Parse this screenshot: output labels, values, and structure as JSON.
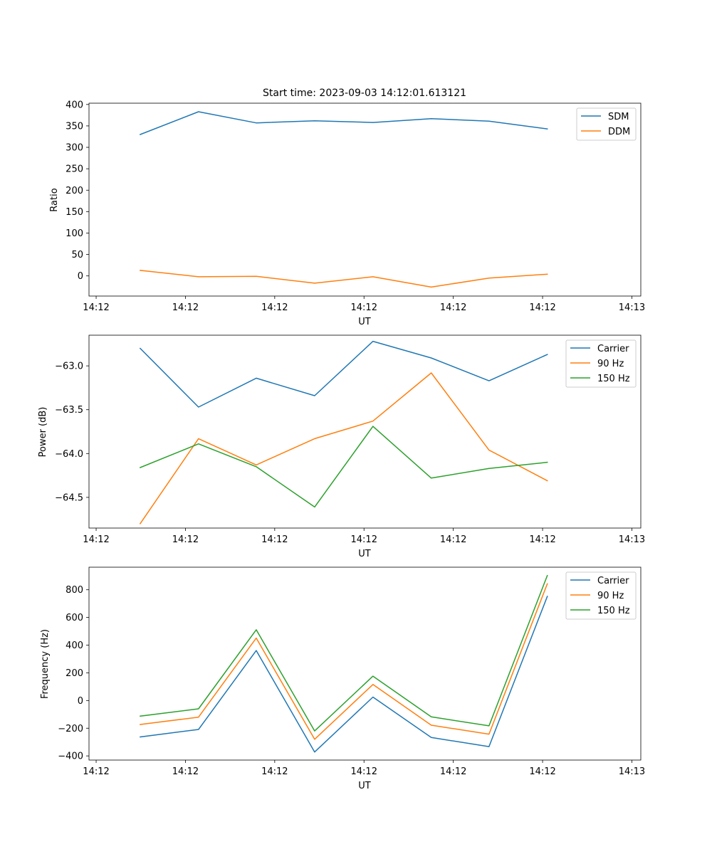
{
  "figure_title": "Start time: 2023-09-03 14:12:01.613121",
  "chart_data": [
    {
      "type": "line",
      "title": "Start time: 2023-09-03 14:12:01.613121",
      "xlabel": "UT",
      "ylabel": "Ratio",
      "xlim": [
        -0.12,
        9.15
      ],
      "ylim": [
        -47,
        403
      ],
      "x_ticks": [
        {
          "value": 0,
          "label": "14:12"
        },
        {
          "value": 1.5,
          "label": "14:12"
        },
        {
          "value": 3,
          "label": "14:12"
        },
        {
          "value": 4.5,
          "label": "14:12"
        },
        {
          "value": 6,
          "label": "14:12"
        },
        {
          "value": 7.5,
          "label": "14:12"
        },
        {
          "value": 9,
          "label": "14:13"
        }
      ],
      "y_ticks": [
        {
          "value": 0,
          "label": "0"
        },
        {
          "value": 50,
          "label": "50"
        },
        {
          "value": 100,
          "label": "100"
        },
        {
          "value": 150,
          "label": "150"
        },
        {
          "value": 200,
          "label": "200"
        },
        {
          "value": 250,
          "label": "250"
        },
        {
          "value": 300,
          "label": "300"
        },
        {
          "value": 350,
          "label": "350"
        },
        {
          "value": 400,
          "label": "400"
        }
      ],
      "x": [
        0.74,
        1.72,
        2.69,
        3.67,
        4.65,
        5.63,
        6.6,
        7.58
      ],
      "series": [
        {
          "name": "SDM",
          "color": "#1f77b4",
          "values": [
            330,
            383,
            357,
            362,
            358,
            367,
            361,
            343
          ]
        },
        {
          "name": "DDM",
          "color": "#ff7f0e",
          "values": [
            13,
            -2,
            -1,
            -17,
            -2,
            -26,
            -5,
            4
          ]
        }
      ],
      "legend_loc": "upper right"
    },
    {
      "type": "line",
      "title": "",
      "xlabel": "UT",
      "ylabel": "Power (dB)",
      "xlim": [
        -0.12,
        9.15
      ],
      "ylim": [
        -64.85,
        -62.65
      ],
      "x_ticks": [
        {
          "value": 0,
          "label": "14:12"
        },
        {
          "value": 1.5,
          "label": "14:12"
        },
        {
          "value": 3,
          "label": "14:12"
        },
        {
          "value": 4.5,
          "label": "14:12"
        },
        {
          "value": 6,
          "label": "14:12"
        },
        {
          "value": 7.5,
          "label": "14:12"
        },
        {
          "value": 9,
          "label": "14:13"
        }
      ],
      "y_ticks": [
        {
          "value": -64.5,
          "label": "−64.5"
        },
        {
          "value": -64.0,
          "label": "−64.0"
        },
        {
          "value": -63.5,
          "label": "−63.5"
        },
        {
          "value": -63.0,
          "label": "−63.0"
        }
      ],
      "x": [
        0.74,
        1.72,
        2.69,
        3.67,
        4.65,
        5.63,
        6.6,
        7.58
      ],
      "series": [
        {
          "name": "Carrier",
          "color": "#1f77b4",
          "values": [
            -62.8,
            -63.47,
            -63.14,
            -63.34,
            -62.72,
            -62.91,
            -63.17,
            -62.87
          ]
        },
        {
          "name": "90 Hz",
          "color": "#ff7f0e",
          "values": [
            -64.8,
            -63.83,
            -64.13,
            -63.83,
            -63.63,
            -63.08,
            -63.96,
            -64.31
          ]
        },
        {
          "name": "150 Hz",
          "color": "#2ca02c",
          "values": [
            -64.16,
            -63.89,
            -64.15,
            -64.61,
            -63.69,
            -64.28,
            -64.17,
            -64.1
          ]
        }
      ],
      "legend_loc": "upper right"
    },
    {
      "type": "line",
      "title": "",
      "xlabel": "UT",
      "ylabel": "Frequency (Hz)",
      "xlim": [
        -0.12,
        9.15
      ],
      "ylim": [
        -430,
        963
      ],
      "x_ticks": [
        {
          "value": 0,
          "label": "14:12"
        },
        {
          "value": 1.5,
          "label": "14:12"
        },
        {
          "value": 3,
          "label": "14:12"
        },
        {
          "value": 4.5,
          "label": "14:12"
        },
        {
          "value": 6,
          "label": "14:12"
        },
        {
          "value": 7.5,
          "label": "14:12"
        },
        {
          "value": 9,
          "label": "14:13"
        }
      ],
      "y_ticks": [
        {
          "value": -400,
          "label": "−400"
        },
        {
          "value": -200,
          "label": "−200"
        },
        {
          "value": 0,
          "label": "0"
        },
        {
          "value": 200,
          "label": "200"
        },
        {
          "value": 400,
          "label": "400"
        },
        {
          "value": 600,
          "label": "600"
        },
        {
          "value": 800,
          "label": "800"
        }
      ],
      "x": [
        0.74,
        1.72,
        2.69,
        3.67,
        4.65,
        5.63,
        6.6,
        7.58
      ],
      "series": [
        {
          "name": "Carrier",
          "color": "#1f77b4",
          "values": [
            -263,
            -209,
            361,
            -372,
            25,
            -267,
            -333,
            752
          ]
        },
        {
          "name": "90 Hz",
          "color": "#ff7f0e",
          "values": [
            -173,
            -120,
            451,
            -280,
            116,
            -178,
            -243,
            843
          ]
        },
        {
          "name": "150 Hz",
          "color": "#2ca02c",
          "values": [
            -113,
            -60,
            511,
            -220,
            176,
            -118,
            -183,
            903
          ]
        }
      ],
      "legend_loc": "upper right"
    }
  ]
}
